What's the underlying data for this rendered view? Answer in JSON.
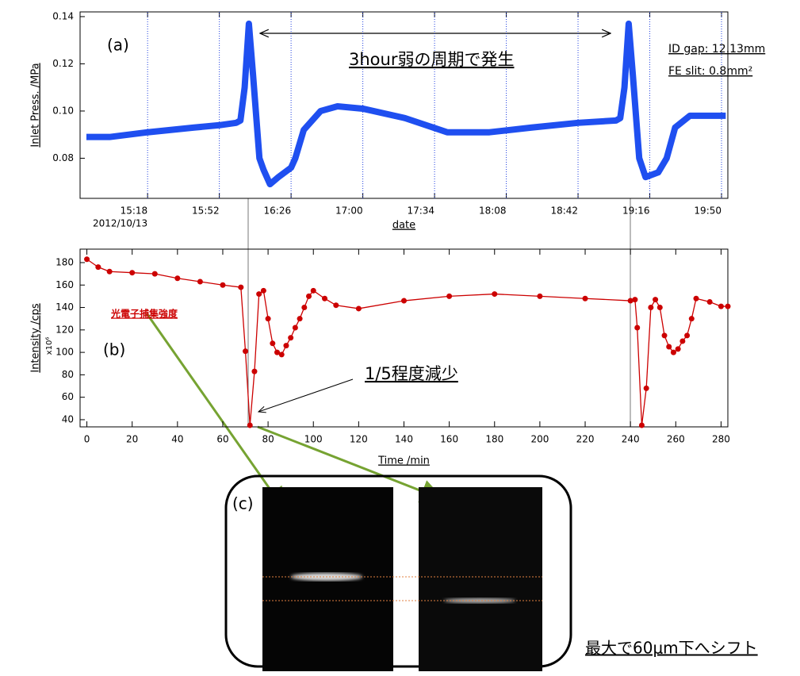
{
  "chart_data": [
    {
      "type": "line",
      "ylabel": "Inlet Press. /MPa",
      "xlabel": "date",
      "x_date_label": "2012/10/13",
      "color": "#1f4ff0",
      "grid": true,
      "annotations": [
        "(a)",
        "3hour弱の周期で発生",
        "ID gap: 12.13mm",
        "FE slit: 0.8mm²"
      ],
      "x": [
        "14:49",
        "15:00",
        "15:18",
        "15:40",
        "15:52",
        "16:00",
        "16:02",
        "16:04",
        "16:06",
        "16:08",
        "16:11",
        "16:13",
        "16:16",
        "16:20",
        "16:26",
        "16:28",
        "16:32",
        "16:40",
        "16:48",
        "17:00",
        "17:20",
        "17:40",
        "18:00",
        "18:20",
        "18:42",
        "19:00",
        "19:02",
        "19:04",
        "19:06",
        "19:08",
        "19:11",
        "19:14",
        "19:20",
        "19:24",
        "19:28",
        "19:35",
        "19:52"
      ],
      "values": [
        0.089,
        0.089,
        0.091,
        0.093,
        0.094,
        0.095,
        0.096,
        0.11,
        0.137,
        0.115,
        0.08,
        0.075,
        0.069,
        0.072,
        0.076,
        0.08,
        0.092,
        0.1,
        0.102,
        0.101,
        0.097,
        0.091,
        0.091,
        0.093,
        0.095,
        0.096,
        0.097,
        0.11,
        0.137,
        0.115,
        0.08,
        0.072,
        0.074,
        0.08,
        0.093,
        0.098,
        0.098
      ],
      "xlim": [
        "14:46",
        "19:53"
      ],
      "xticks": [
        "15:18",
        "15:52",
        "16:26",
        "17:00",
        "17:34",
        "18:08",
        "18:42",
        "19:16",
        "19:50"
      ],
      "ylim": [
        0.063,
        0.142
      ],
      "yticks": [
        {
          "value": 0.08,
          "label": "0.08"
        },
        {
          "value": 0.1,
          "label": "0.10"
        },
        {
          "value": 0.12,
          "label": "0.12"
        },
        {
          "value": 0.14,
          "label": "0.14"
        }
      ]
    },
    {
      "type": "line",
      "ylabel": "Intensity /cps",
      "xlabel": "Time /min",
      "y_unit_label": "x10⁶",
      "color": "#cc0000",
      "grid": false,
      "annotations": [
        "(b)",
        "光電子捕集強度",
        "1/5程度減少"
      ],
      "x": [
        0,
        5,
        10,
        20,
        30,
        40,
        50,
        60,
        68,
        70,
        72,
        74,
        76,
        78,
        80,
        82,
        84,
        86,
        88,
        90,
        92,
        94,
        96,
        98,
        100,
        105,
        110,
        120,
        140,
        160,
        180,
        200,
        220,
        240,
        242,
        243,
        245,
        247,
        249,
        251,
        253,
        255,
        257,
        259,
        261,
        263,
        265,
        267,
        269,
        275,
        280,
        283
      ],
      "values": [
        183,
        176,
        172,
        171,
        170,
        166,
        163,
        160,
        158,
        101,
        35,
        83,
        152,
        155,
        130,
        108,
        100,
        98,
        106,
        113,
        122,
        130,
        140,
        150,
        155,
        148,
        142,
        139,
        146,
        150,
        152,
        150,
        148,
        146,
        147,
        122,
        35,
        68,
        140,
        147,
        140,
        115,
        105,
        100,
        103,
        110,
        115,
        130,
        148,
        145,
        141,
        141
      ],
      "xlim": [
        -3,
        283
      ],
      "xticks": [
        0,
        20,
        40,
        60,
        80,
        100,
        120,
        140,
        160,
        180,
        200,
        220,
        240,
        260,
        280
      ],
      "ylim": [
        33.6,
        192
      ],
      "yticks": [
        40,
        60,
        80,
        100,
        120,
        140,
        160,
        180
      ]
    }
  ],
  "figure_c": {
    "label": "(c)",
    "caption": "最大で60μm下へシフト"
  }
}
